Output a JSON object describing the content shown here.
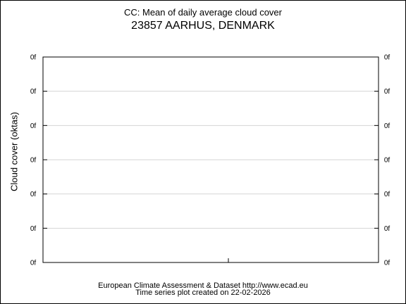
{
  "title": "CC: Mean of daily average cloud cover",
  "subtitle": "23857 AARHUS, DENMARK",
  "footer": {
    "line1": "European Climate Assessment & Dataset  http://www.ecad.eu",
    "line2": "Time series plot created on 22-02-2026"
  },
  "chart_data": {
    "type": "line",
    "title": "CC: Mean of daily average cloud cover",
    "subtitle": "23857 AARHUS, DENMARK",
    "xlabel": "",
    "ylabel": "Cloud cover (oktas)",
    "y_tick_labels": [
      "0f",
      "0f",
      "0f",
      "0f",
      "0f",
      "0f",
      "0f"
    ],
    "grid": true,
    "series": [],
    "x": []
  }
}
